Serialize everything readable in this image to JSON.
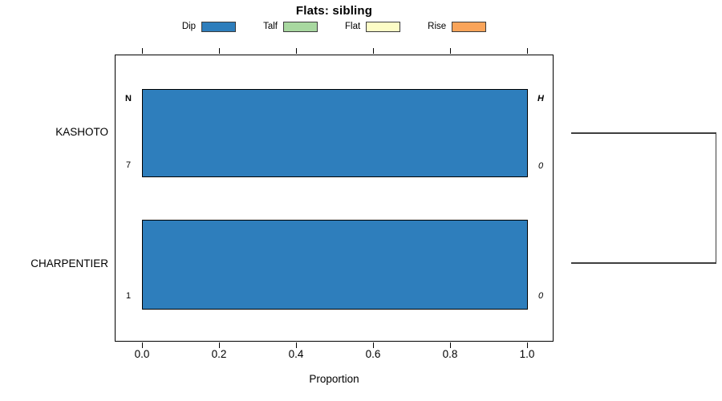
{
  "title": "Flats: sibling",
  "legend": {
    "items": [
      {
        "label": "Dip",
        "color": "#2E7EBC"
      },
      {
        "label": "Talf",
        "color": "#A8D8A0"
      },
      {
        "label": "Flat",
        "color": "#FCFCC6"
      },
      {
        "label": "Rise",
        "color": "#F9A45A"
      }
    ]
  },
  "chart_data": {
    "type": "bar",
    "orientation": "horizontal",
    "title": "Flats: sibling",
    "xlabel": "Proportion",
    "xlim": [
      0.0,
      1.0
    ],
    "x_ticks": [
      "0.0",
      "0.2",
      "0.4",
      "0.6",
      "0.8",
      "1.0"
    ],
    "grid": false,
    "legend_position": "top",
    "categories": [
      "KASHOTO",
      "CHARPENTIER"
    ],
    "series": [
      {
        "name": "Dip",
        "color": "#2E7EBC",
        "values": [
          1.0,
          1.0
        ]
      },
      {
        "name": "Talf",
        "color": "#A8D8A0",
        "values": [
          0.0,
          0.0
        ]
      },
      {
        "name": "Flat",
        "color": "#FCFCC6",
        "values": [
          0.0,
          0.0
        ]
      },
      {
        "name": "Rise",
        "color": "#F9A45A",
        "values": [
          0.0,
          0.0
        ]
      }
    ],
    "columns": {
      "n_header": "N",
      "h_header": "H"
    },
    "rows": [
      {
        "category": "KASHOTO",
        "n": "7",
        "h": "0"
      },
      {
        "category": "CHARPENTIER",
        "n": "1",
        "h": "0"
      }
    ],
    "annotations": "right-side dendrogram joining KASHOTO and CHARPENTIER"
  }
}
